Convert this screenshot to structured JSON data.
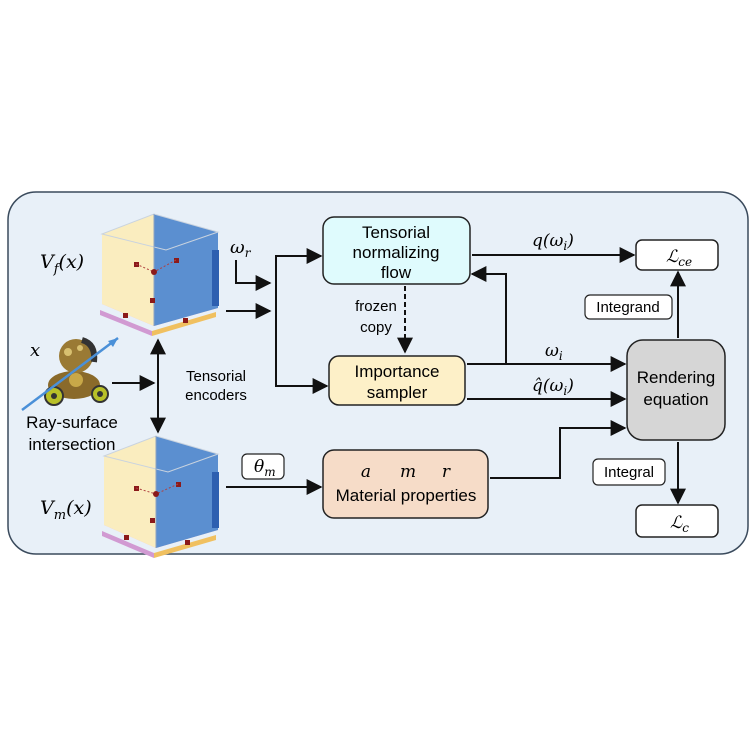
{
  "nodes": {
    "flow": [
      "Tensorial",
      "normalizing",
      "flow"
    ],
    "sampler": [
      "Importance",
      "sampler"
    ],
    "material_title": "Material properties",
    "material_vars": [
      "a",
      "m",
      "r"
    ],
    "render": [
      "Rendering",
      "equation"
    ],
    "lce": "ℒ",
    "lce_sub": "ce",
    "lc": "ℒ",
    "lc_sub": "c"
  },
  "labels": {
    "vf_main": "V",
    "vf_sub": "f",
    "vf_arg": "(x)",
    "vm_main": "V",
    "vm_sub": "m",
    "vm_arg": "(x)",
    "x": "x",
    "ray": [
      "Ray-surface",
      "intersection"
    ],
    "encoders": [
      "Tensorial",
      "encoders"
    ],
    "frozen": [
      "frozen",
      "copy"
    ],
    "omega_r": "ω",
    "omega_r_sub": "r",
    "q_omega": "q(ω",
    "q_omega_sub": "i",
    "q_omega_end": ")",
    "omega_i": "ω",
    "omega_i_sub": "i",
    "qhat": "q̂(ω",
    "qhat_sub": "i",
    "qhat_end": ")",
    "theta": "θ",
    "theta_sub": "m",
    "integrand": "Integrand",
    "integral": "Integral"
  },
  "colors": {
    "panel_bg": "#e8f0f8",
    "panel_border": "#3a4a5c",
    "flow_fill": "#dffbfd",
    "sampler_fill": "#fdf0c8",
    "material_fill": "#f6dcc8",
    "render_fill": "#d6d6d6",
    "cube_blue": "#5b8fd0",
    "cube_yellow": "#faedbf",
    "cube_pink": "#f6b3c0"
  }
}
